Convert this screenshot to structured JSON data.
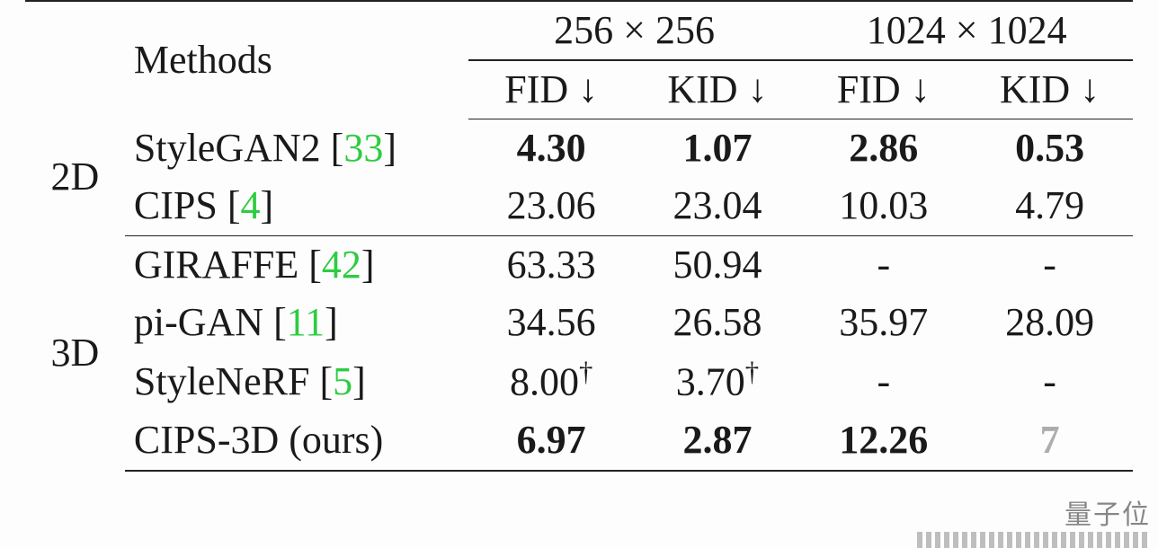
{
  "table": {
    "type": "table",
    "background_color": "#fdfdfe",
    "text_color": "#1a1a1a",
    "ref_color": "#2ecc40",
    "rule_color": "#222222",
    "font_family": "Times New Roman",
    "base_fontsize_pt": 33,
    "down_arrow_glyph": "↓",
    "times_glyph": "×",
    "header": {
      "methods_label": "Methods",
      "res256_label": "256 × 256",
      "res1024_label": "1024 × 1024",
      "metric_fid": "FID",
      "metric_kid": "KID"
    },
    "groups": [
      {
        "label": "2D",
        "rows": [
          {
            "method": "StyleGAN2",
            "ref": "33",
            "fid256": "4.30",
            "fid256_bold": true,
            "kid256": "1.07",
            "kid256_bold": true,
            "fid1024": "2.86",
            "fid1024_bold": true,
            "kid1024": "0.53",
            "kid1024_bold": true
          },
          {
            "method": "CIPS",
            "ref": "4",
            "fid256": "23.06",
            "kid256": "23.04",
            "fid1024": "10.03",
            "kid1024": "4.79"
          }
        ]
      },
      {
        "label": "3D",
        "rows": [
          {
            "method": "GIRAFFE",
            "ref": "42",
            "fid256": "63.33",
            "kid256": "50.94",
            "fid1024": "-",
            "kid1024": "-"
          },
          {
            "method": "pi-GAN",
            "ref": "11",
            "fid256": "34.56",
            "kid256": "26.58",
            "fid1024": "35.97",
            "kid1024": "28.09"
          },
          {
            "method": "StyleNeRF",
            "ref": "5",
            "fid256": "8.00",
            "fid256_dagger": true,
            "kid256": "3.70",
            "kid256_dagger": true,
            "fid1024": "-",
            "kid1024": "-"
          },
          {
            "method": "CIPS-3D (ours)",
            "ref": "",
            "fid256": "6.97",
            "fid256_bold": true,
            "kid256": "2.87",
            "kid256_bold": true,
            "fid1024": "12.26",
            "fid1024_bold": true,
            "kid1024": "7",
            "kid1024_obscured": true
          }
        ]
      }
    ],
    "watermark_text": "量子位"
  }
}
